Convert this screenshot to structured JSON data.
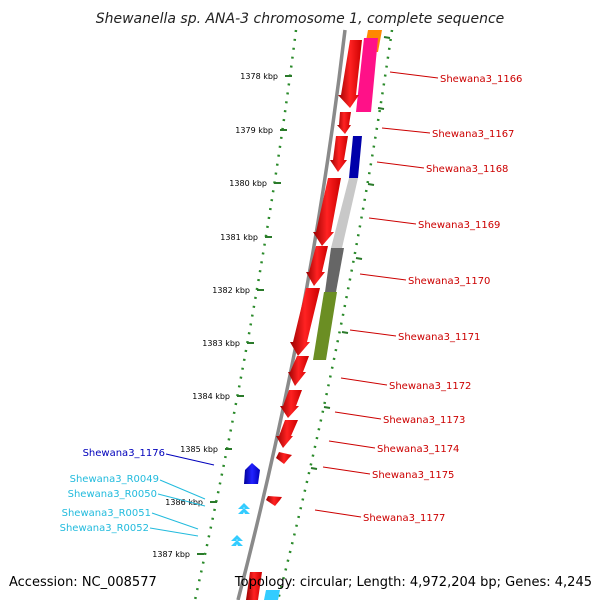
{
  "title": "Shewanella sp. ANA-3 chromosome 1, complete sequence",
  "accession": "Accession: NC_008577",
  "summary": "Topology: circular; Length: 4,972,204 bp; Genes: 4,245",
  "ticks": [
    "1378 kbp",
    "1379 kbp",
    "1380 kbp",
    "1381 kbp",
    "1382 kbp",
    "1383 kbp",
    "1384 kbp",
    "1385 kbp",
    "1386 kbp",
    "1387 kbp"
  ],
  "gene_labels": [
    {
      "text": "Shewana3_1166",
      "color": "#cc0000"
    },
    {
      "text": "Shewana3_1167",
      "color": "#cc0000"
    },
    {
      "text": "Shewana3_1168",
      "color": "#cc0000"
    },
    {
      "text": "Shewana3_1169",
      "color": "#cc0000"
    },
    {
      "text": "Shewana3_1170",
      "color": "#cc0000"
    },
    {
      "text": "Shewana3_1171",
      "color": "#cc0000"
    },
    {
      "text": "Shewana3_1172",
      "color": "#cc0000"
    },
    {
      "text": "Shewana3_1173",
      "color": "#cc0000"
    },
    {
      "text": "Shewana3_1174",
      "color": "#cc0000"
    },
    {
      "text": "Shewana3_1175",
      "color": "#cc0000"
    },
    {
      "text": "Shewana3_1177",
      "color": "#cc0000"
    },
    {
      "text": "Shewana3_1176",
      "color": "#0000bb"
    },
    {
      "text": "Shewana3_R0049",
      "color": "#22bbdd"
    },
    {
      "text": "Shewana3_R0050",
      "color": "#22bbdd"
    },
    {
      "text": "Shewana3_R0051",
      "color": "#22bbdd"
    },
    {
      "text": "Shewana3_R0052",
      "color": "#22bbdd"
    }
  ],
  "colors": {
    "forward_cds": "#ff0000",
    "reverse_cds": "#0000ee",
    "rna": "#33ccff",
    "backbone": "#888888",
    "gc_track": "#339933"
  }
}
